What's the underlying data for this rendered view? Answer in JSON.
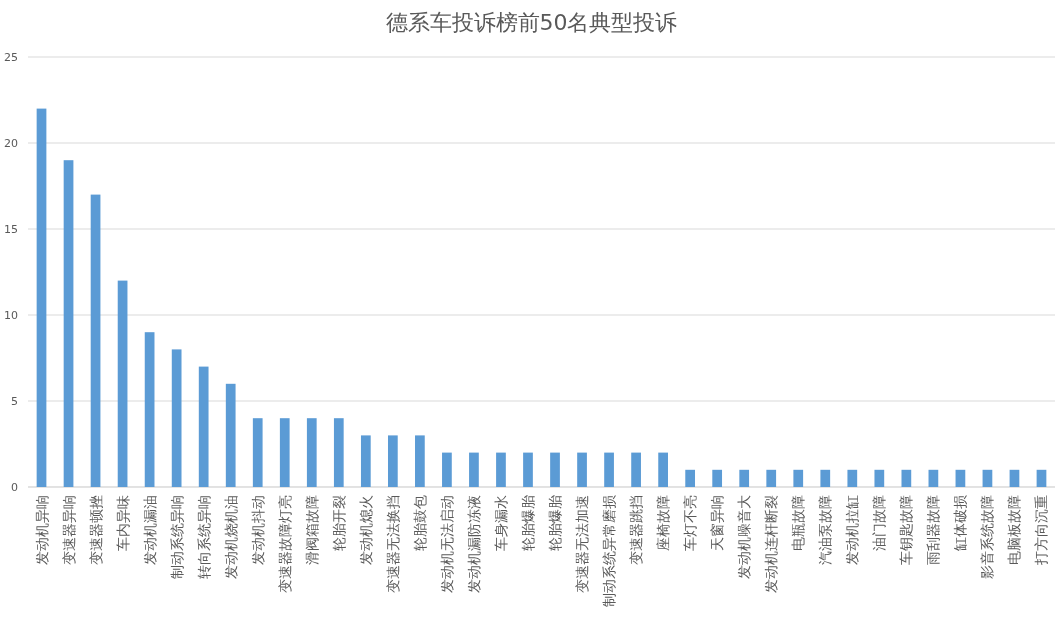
{
  "chart_data": {
    "type": "bar",
    "title": "德系车投诉榜前50名典型投诉",
    "categories": [
      "发动机异响",
      "变速器异响",
      "变速器顿挫",
      "车内异味",
      "发动机漏油",
      "制动系统异响",
      "转向系统异响",
      "发动机烧机油",
      "发动机抖动",
      "变速器故障灯亮",
      "滑阀箱故障",
      "轮胎开裂",
      "发动机熄火",
      "变速器无法换挡",
      "轮胎鼓包",
      "发动机无法启动",
      "发动机漏防冻液",
      "车身漏水",
      "轮胎爆胎",
      "轮胎爆胎",
      "变速器无法加速",
      "制动系统异常磨损",
      "变速器跳挡",
      "座椅故障",
      "车灯不亮",
      "天窗异响",
      "发动机噪音大",
      "发动机连杆断裂",
      "电瓶故障",
      "汽油泵故障",
      "发动机拉缸",
      "油门故障",
      "车钥匙故障",
      "雨刮器故障",
      "缸体破损",
      "影音系统故障",
      "电脑板故障",
      "打方向沉重"
    ],
    "values": [
      22,
      19,
      17,
      12,
      9,
      8,
      7,
      6,
      4,
      4,
      4,
      4,
      3,
      3,
      3,
      2,
      2,
      2,
      2,
      2,
      2,
      2,
      2,
      2,
      1,
      1,
      1,
      1,
      1,
      1,
      1,
      1,
      1,
      1,
      1,
      1,
      1,
      1
    ],
    "color": "#5b9bd5",
    "ylim": [
      0,
      25
    ],
    "yticks": [
      0,
      5,
      10,
      15,
      20,
      25
    ],
    "grid": "y"
  }
}
